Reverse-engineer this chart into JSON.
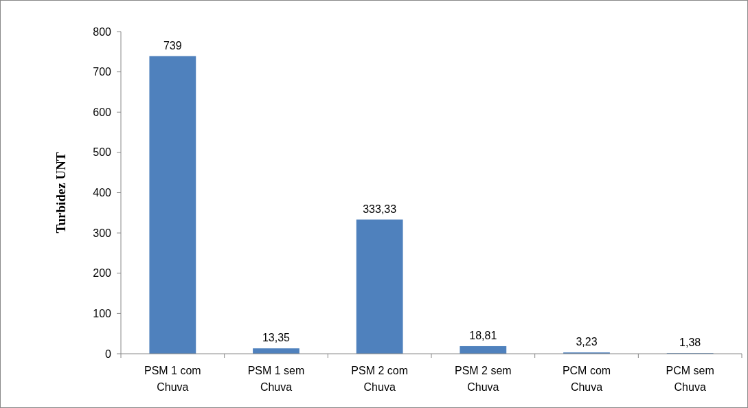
{
  "chart_data": {
    "type": "bar",
    "ylabel": "Turbidez UNT",
    "categories": [
      "PSM 1 com Chuva",
      "PSM 1 sem Chuva",
      "PSM 2 com Chuva",
      "PSM 2 sem Chuva",
      "PCM com Chuva",
      "PCM sem Chuva"
    ],
    "values": [
      739,
      13.35,
      333.33,
      18.81,
      3.23,
      1.38
    ],
    "value_labels": [
      "739",
      "13,35",
      "333,33",
      "18,81",
      "3,23",
      "1,38"
    ],
    "color": "#4f81bd",
    "ylim": [
      0,
      800
    ],
    "yticks": [
      0,
      100,
      200,
      300,
      400,
      500,
      600,
      700,
      800
    ],
    "grid": false
  }
}
